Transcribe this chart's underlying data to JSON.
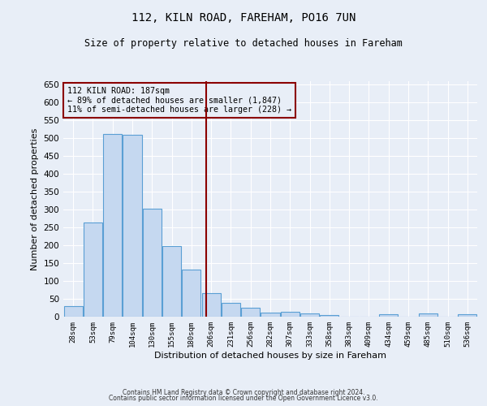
{
  "title1": "112, KILN ROAD, FAREHAM, PO16 7UN",
  "title2": "Size of property relative to detached houses in Fareham",
  "xlabel": "Distribution of detached houses by size in Fareham",
  "ylabel": "Number of detached properties",
  "categories": [
    "28sqm",
    "53sqm",
    "79sqm",
    "104sqm",
    "130sqm",
    "155sqm",
    "180sqm",
    "206sqm",
    "231sqm",
    "256sqm",
    "282sqm",
    "307sqm",
    "333sqm",
    "358sqm",
    "383sqm",
    "409sqm",
    "434sqm",
    "459sqm",
    "485sqm",
    "510sqm",
    "536sqm"
  ],
  "values": [
    30,
    263,
    511,
    510,
    302,
    198,
    133,
    65,
    38,
    25,
    12,
    13,
    8,
    5,
    1,
    1,
    6,
    1,
    8,
    1,
    6
  ],
  "bar_color": "#c5d8f0",
  "bar_edge_color": "#5a9fd4",
  "bar_edge_width": 0.8,
  "background_color": "#e8eef7",
  "grid_color": "#ffffff",
  "vline_x": 6.73,
  "vline_color": "#8b0000",
  "annotation_text": "112 KILN ROAD: 187sqm\n← 89% of detached houses are smaller (1,847)\n11% of semi-detached houses are larger (228) →",
  "annotation_box_color": "#8b0000",
  "annotation_text_color": "#000000",
  "ylim": [
    0,
    660
  ],
  "yticks": [
    0,
    50,
    100,
    150,
    200,
    250,
    300,
    350,
    400,
    450,
    500,
    550,
    600,
    650
  ],
  "footer1": "Contains HM Land Registry data © Crown copyright and database right 2024.",
  "footer2": "Contains public sector information licensed under the Open Government Licence v3.0."
}
